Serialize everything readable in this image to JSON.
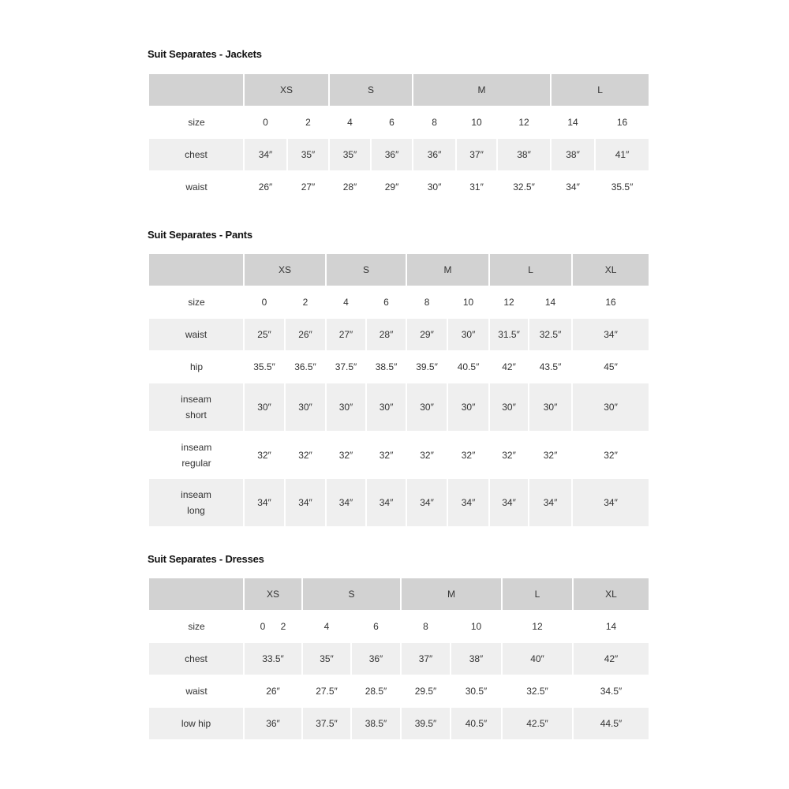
{
  "tables": [
    {
      "id": "jackets",
      "title": "Suit Separates - Jackets",
      "groups": [
        {
          "label": "XS",
          "span": 2
        },
        {
          "label": "S",
          "span": 2
        },
        {
          "label": "M",
          "span": 3
        },
        {
          "label": "L",
          "span": 2
        }
      ],
      "rows": [
        {
          "label": "size",
          "values": [
            "0",
            "2",
            "4",
            "6",
            "8",
            "10",
            "12",
            "14",
            "16"
          ]
        },
        {
          "label": "chest",
          "values": [
            "34″",
            "35″",
            "35″",
            "36″",
            "36″",
            "37″",
            "38″",
            "38″",
            "41″"
          ]
        },
        {
          "label": "waist",
          "values": [
            "26″",
            "27″",
            "28″",
            "29″",
            "30″",
            "31″",
            "32.5″",
            "34″",
            "35.5″"
          ]
        }
      ]
    },
    {
      "id": "pants",
      "title": "Suit Separates - Pants",
      "groups": [
        {
          "label": "XS",
          "span": 2
        },
        {
          "label": "S",
          "span": 2
        },
        {
          "label": "M",
          "span": 2
        },
        {
          "label": "L",
          "span": 2
        },
        {
          "label": "XL",
          "span": 1
        }
      ],
      "rows": [
        {
          "label": "size",
          "values": [
            "0",
            "2",
            "4",
            "6",
            "8",
            "10",
            "12",
            "14",
            "16"
          ]
        },
        {
          "label": "waist",
          "values": [
            "25″",
            "26″",
            "27″",
            "28″",
            "29″",
            "30″",
            "31.5″",
            "32.5″",
            "34″"
          ]
        },
        {
          "label": "hip",
          "values": [
            "35.5″",
            "36.5″",
            "37.5″",
            "38.5″",
            "39.5″",
            "40.5″",
            "42″",
            "43.5″",
            "45″"
          ]
        },
        {
          "label": [
            "inseam",
            "short"
          ],
          "values": [
            "30″",
            "30″",
            "30″",
            "30″",
            "30″",
            "30″",
            "30″",
            "30″",
            "30″"
          ]
        },
        {
          "label": [
            "inseam",
            "regular"
          ],
          "values": [
            "32″",
            "32″",
            "32″",
            "32″",
            "32″",
            "32″",
            "32″",
            "32″",
            "32″"
          ]
        },
        {
          "label": [
            "inseam",
            "long"
          ],
          "values": [
            "34″",
            "34″",
            "34″",
            "34″",
            "34″",
            "34″",
            "34″",
            "34″",
            "34″"
          ]
        }
      ]
    },
    {
      "id": "dresses",
      "title": "Suit Separates - Dresses",
      "groups": [
        {
          "label": "XS",
          "span": 1
        },
        {
          "label": "S",
          "span": 2
        },
        {
          "label": "M",
          "span": 2
        },
        {
          "label": "L",
          "span": 1
        },
        {
          "label": "XL",
          "span": 1
        }
      ],
      "rows": [
        {
          "label": "size",
          "values": [
            [
              "0",
              "2"
            ],
            "4",
            "6",
            "8",
            "10",
            "12",
            "14"
          ]
        },
        {
          "label": "chest",
          "values": [
            "33.5″",
            "35″",
            "36″",
            "37″",
            "38″",
            "40″",
            "42″"
          ]
        },
        {
          "label": "waist",
          "values": [
            "26″",
            "27.5″",
            "28.5″",
            "29.5″",
            "30.5″",
            "32.5″",
            "34.5″"
          ]
        },
        {
          "label": "low hip",
          "values": [
            "36″",
            "37.5″",
            "38.5″",
            "39.5″",
            "40.5″",
            "42.5″",
            "44.5″"
          ]
        }
      ]
    }
  ]
}
